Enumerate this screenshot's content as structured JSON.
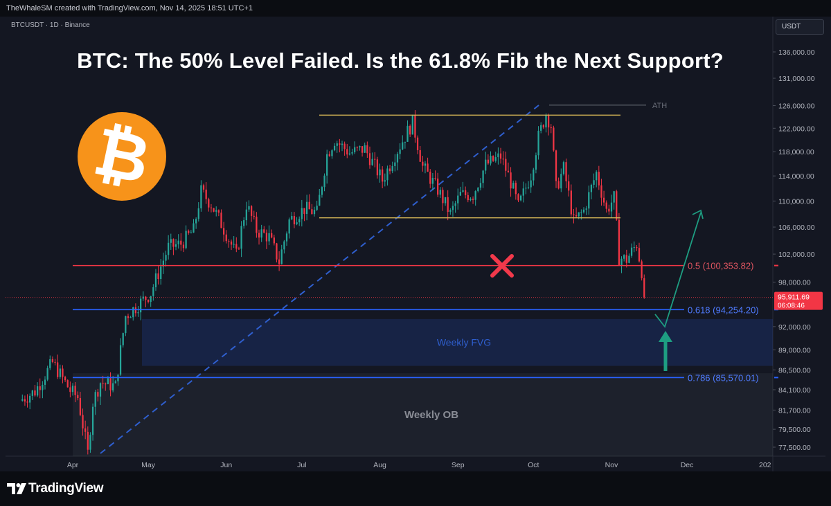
{
  "header": {
    "attribution": "TheWhaleSM created with TradingView.com, Nov 14, 2025 18:51 UTC+1",
    "symbol": "BTCUSDT · 1D · Binance",
    "currency": "USDT"
  },
  "headline": "BTC: The 50% Level Failed. Is the 61.8% Fib the Next Support?",
  "logo": {
    "name": "bitcoin-logo",
    "glyph": "₿",
    "color": "#f7931a"
  },
  "footer": {
    "brand": "TradingView"
  },
  "colors": {
    "background": "#141722",
    "up": "#26a69a",
    "down": "#f23645",
    "fib50": "#f23645",
    "fib_blue": "#2962ff",
    "range": "#d6b656",
    "projection": "#1e9e82",
    "trendline": "#2f5fcf"
  },
  "chart_data": {
    "type": "candlestick",
    "symbol": "BTCUSDT",
    "interval": "1D",
    "exchange": "Binance",
    "y_axis": {
      "ticks": [
        77500,
        79500,
        81700,
        84100,
        86500,
        89000,
        92000,
        95911.69,
        98000,
        102000,
        106000,
        110000,
        114000,
        118000,
        122000,
        126000,
        131000,
        136000
      ],
      "tick_labels": [
        "77,500.00",
        "79,500.00",
        "81,700.00",
        "84,100.00",
        "86,500.00",
        "89,000.00",
        "92,000.00",
        "95,911.69",
        "98,000.00",
        "102,000.00",
        "106,000.00",
        "110,000.00",
        "114,000.00",
        "118,000.00",
        "122,000.00",
        "126,000.00",
        "131,000.00",
        "136,000.00"
      ],
      "scale": "log"
    },
    "x_axis": {
      "labels": [
        "Apr",
        "May",
        "Jun",
        "Jul",
        "Aug",
        "Sep",
        "Oct",
        "Nov",
        "Dec",
        "202"
      ]
    },
    "last_price": {
      "value": 95911.69,
      "label": "95,911.69",
      "countdown": "06:08:46"
    },
    "fib_levels": [
      {
        "ratio": "0.5",
        "price": 100353.82,
        "label": "0.5 (100,353.82)"
      },
      {
        "ratio": "0.618",
        "price": 94254.2,
        "label": "0.618 (94,254.20)"
      },
      {
        "ratio": "0.786",
        "price": 85570.01,
        "label": "0.786 (85,570.01)"
      }
    ],
    "range_lines": [
      124300,
      107400
    ],
    "zones": [
      {
        "label": "Weekly FVG",
        "from": 87000,
        "to": 93000
      },
      {
        "label": "Weekly OB",
        "from": 76500,
        "to": 86100
      }
    ],
    "annotations": [
      {
        "label": "ATH",
        "price": 126080
      }
    ],
    "candle_keys": [
      [
        "2025-03-11",
        82800
      ],
      [
        "2025-03-17",
        83900
      ],
      [
        "2025-03-24",
        87400
      ],
      [
        "2025-03-31",
        84000
      ],
      [
        "2025-04-03",
        83200
      ],
      [
        "2025-04-07",
        76800
      ],
      [
        "2025-04-09",
        82600
      ],
      [
        "2025-04-12",
        85000
      ],
      [
        "2025-04-18",
        84500
      ],
      [
        "2025-04-22",
        93400
      ],
      [
        "2025-04-26",
        94600
      ],
      [
        "2025-05-02",
        96500
      ],
      [
        "2025-05-09",
        103000
      ],
      [
        "2025-05-14",
        103500
      ],
      [
        "2025-05-19",
        105500
      ],
      [
        "2025-05-22",
        111500
      ],
      [
        "2025-05-26",
        109500
      ],
      [
        "2025-06-01",
        105000
      ],
      [
        "2025-06-05",
        101800
      ],
      [
        "2025-06-09",
        109500
      ],
      [
        "2025-06-13",
        105500
      ],
      [
        "2025-06-18",
        104500
      ],
      [
        "2025-06-22",
        100900
      ],
      [
        "2025-06-26",
        107000
      ],
      [
        "2025-07-02",
        108800
      ],
      [
        "2025-07-07",
        108200
      ],
      [
        "2025-07-11",
        117500
      ],
      [
        "2025-07-14",
        120000
      ],
      [
        "2025-07-20",
        117800
      ],
      [
        "2025-07-26",
        118500
      ],
      [
        "2025-08-02",
        113300
      ],
      [
        "2025-08-07",
        117500
      ],
      [
        "2025-08-14",
        123000
      ],
      [
        "2025-08-18",
        115500
      ],
      [
        "2025-08-24",
        111800
      ],
      [
        "2025-08-29",
        108000
      ],
      [
        "2025-09-02",
        111000
      ],
      [
        "2025-09-07",
        111000
      ],
      [
        "2025-09-12",
        115800
      ],
      [
        "2025-09-18",
        117200
      ],
      [
        "2025-09-22",
        113000
      ],
      [
        "2025-09-25",
        109100
      ],
      [
        "2025-09-30",
        114200
      ],
      [
        "2025-10-03",
        120500
      ],
      [
        "2025-10-06",
        124500
      ],
      [
        "2025-10-08",
        122500
      ],
      [
        "2025-10-10",
        112000
      ],
      [
        "2025-10-13",
        115200
      ],
      [
        "2025-10-17",
        106800
      ],
      [
        "2025-10-21",
        108500
      ],
      [
        "2025-10-26",
        114500
      ],
      [
        "2025-10-30",
        108500
      ],
      [
        "2025-11-02",
        110500
      ],
      [
        "2025-11-04",
        101500
      ],
      [
        "2025-11-07",
        101200
      ],
      [
        "2025-11-11",
        103500
      ],
      [
        "2025-11-12",
        101500
      ],
      [
        "2025-11-13",
        99600
      ],
      [
        "2025-11-14",
        95911.69
      ]
    ]
  }
}
